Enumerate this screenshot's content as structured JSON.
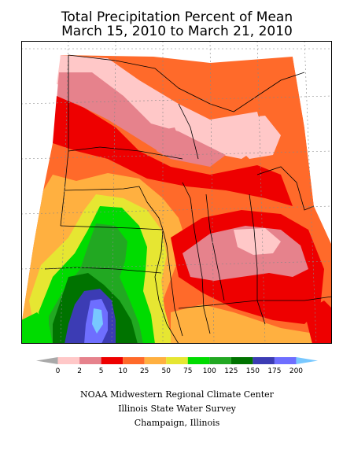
{
  "header": {
    "title_line1": "Total Precipitation Percent of Mean",
    "title_line2": "March 15, 2010 to March 21, 2010"
  },
  "legend": {
    "bins": [
      {
        "color": "#a9a9a9"
      },
      {
        "color": "#ffc8c8"
      },
      {
        "color": "#e6828c"
      },
      {
        "color": "#ee0000"
      },
      {
        "color": "#ff6a2a"
      },
      {
        "color": "#ffb040"
      },
      {
        "color": "#e6e632"
      },
      {
        "color": "#00dc00"
      },
      {
        "color": "#22a822"
      },
      {
        "color": "#007300"
      },
      {
        "color": "#3c3cb4"
      },
      {
        "color": "#6e6eff"
      },
      {
        "color": "#78c8ff"
      }
    ],
    "labels": [
      "0",
      "2",
      "5",
      "10",
      "25",
      "50",
      "75",
      "100",
      "125",
      "150",
      "175",
      "200"
    ]
  },
  "credits": {
    "line1": "NOAA Midwestern Regional Climate Center",
    "line2": "Illinois State Water Survey",
    "line3": "Champaign, Illinois"
  }
}
